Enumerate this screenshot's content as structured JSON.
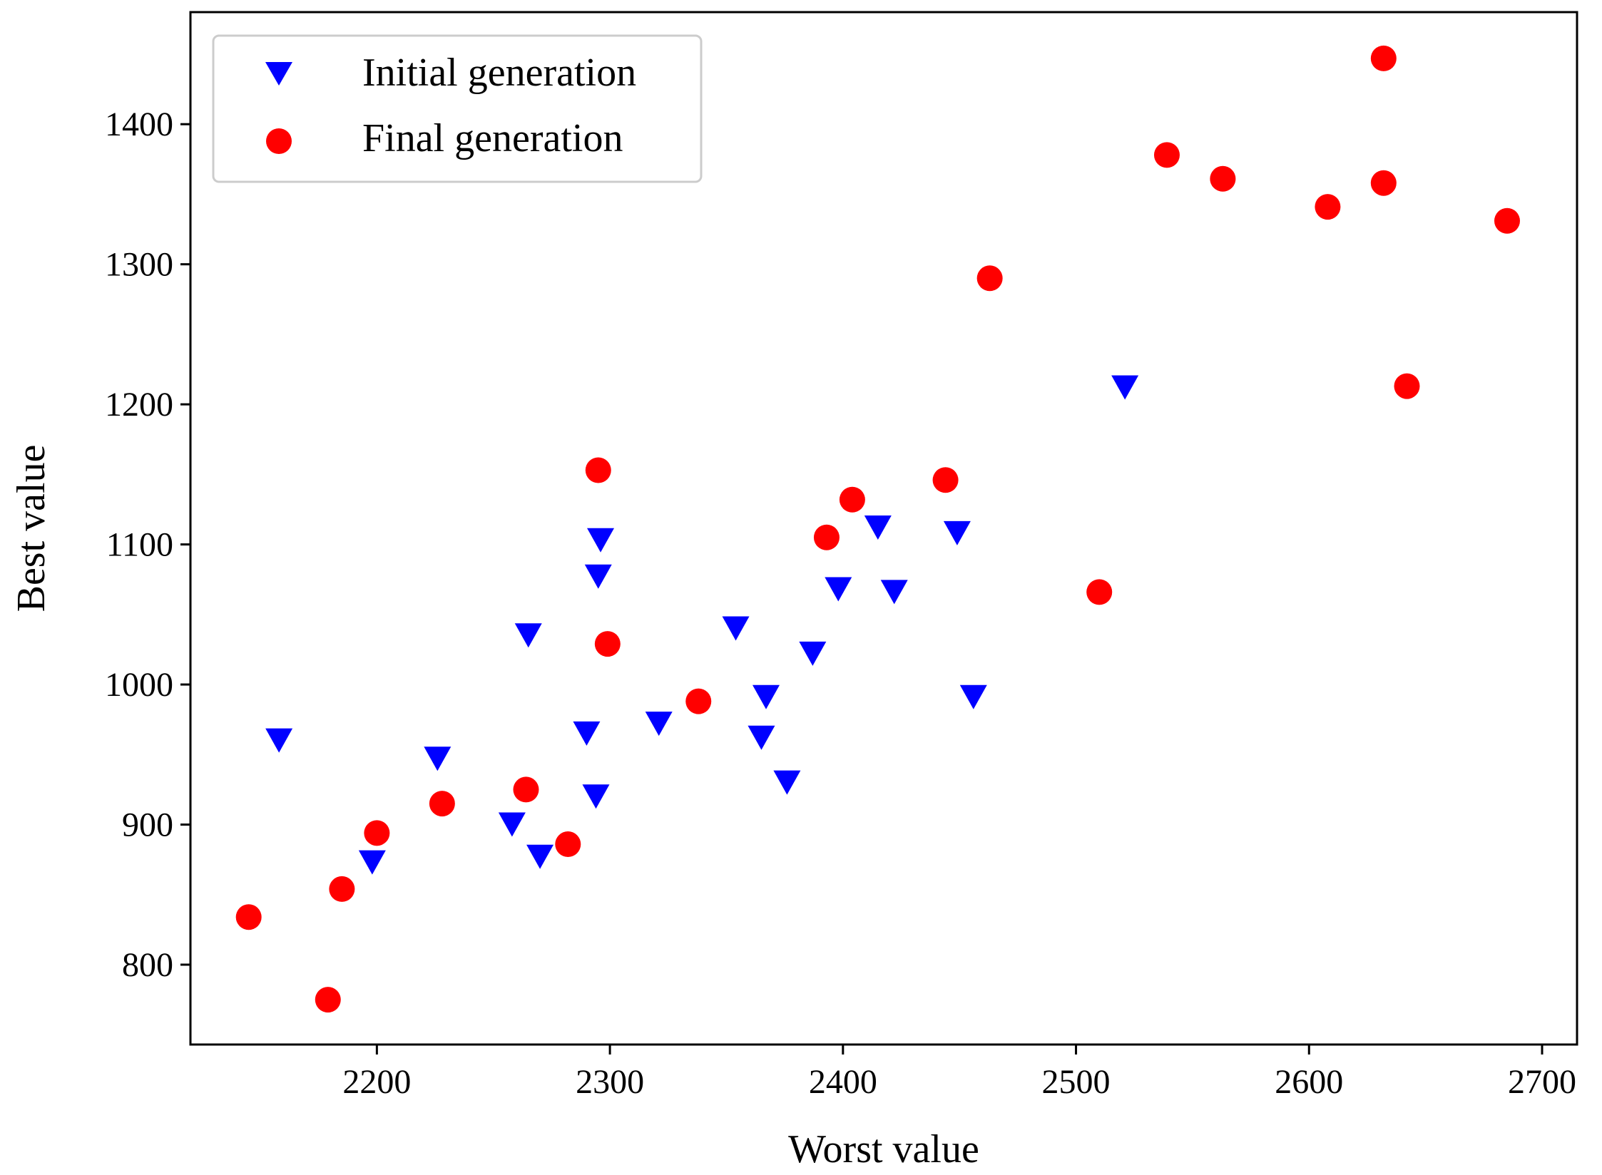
{
  "chart_data": {
    "type": "scatter",
    "title": "",
    "xlabel": "Worst value",
    "ylabel": "Best value",
    "xlim": [
      2120,
      2715
    ],
    "ylim": [
      743,
      1480
    ],
    "xticks": [
      2200,
      2300,
      2400,
      2500,
      2600,
      2700
    ],
    "yticks": [
      800,
      900,
      1000,
      1100,
      1200,
      1300,
      1400
    ],
    "grid": false,
    "legend_position": "top-left",
    "series": [
      {
        "name": "Initial generation",
        "marker": "triangle-down",
        "color": "#0000ff",
        "points": [
          [
            2158,
            960
          ],
          [
            2198,
            873
          ],
          [
            2226,
            947
          ],
          [
            2258,
            900
          ],
          [
            2265,
            1035
          ],
          [
            2270,
            877
          ],
          [
            2290,
            965
          ],
          [
            2294,
            920
          ],
          [
            2295,
            1077
          ],
          [
            2296,
            1103
          ],
          [
            2321,
            972
          ],
          [
            2354,
            1040
          ],
          [
            2365,
            962
          ],
          [
            2367,
            991
          ],
          [
            2376,
            930
          ],
          [
            2387,
            1022
          ],
          [
            2398,
            1068
          ],
          [
            2415,
            1112
          ],
          [
            2422,
            1066
          ],
          [
            2449,
            1108
          ],
          [
            2456,
            991
          ],
          [
            2521,
            1212
          ]
        ]
      },
      {
        "name": "Final generation",
        "marker": "circle",
        "color": "#ff0000",
        "points": [
          [
            2145,
            834
          ],
          [
            2179,
            775
          ],
          [
            2185,
            854
          ],
          [
            2200,
            894
          ],
          [
            2228,
            915
          ],
          [
            2264,
            925
          ],
          [
            2282,
            886
          ],
          [
            2295,
            1153
          ],
          [
            2299,
            1029
          ],
          [
            2338,
            988
          ],
          [
            2393,
            1105
          ],
          [
            2404,
            1132
          ],
          [
            2444,
            1146
          ],
          [
            2463,
            1290
          ],
          [
            2510,
            1066
          ],
          [
            2539,
            1378
          ],
          [
            2563,
            1361
          ],
          [
            2608,
            1341
          ],
          [
            2632,
            1447
          ],
          [
            2632,
            1358
          ],
          [
            2642,
            1213
          ],
          [
            2685,
            1331
          ]
        ]
      }
    ]
  },
  "colors": {
    "axes": "#000000",
    "legend_border": "#cccccc",
    "background": "#ffffff"
  }
}
